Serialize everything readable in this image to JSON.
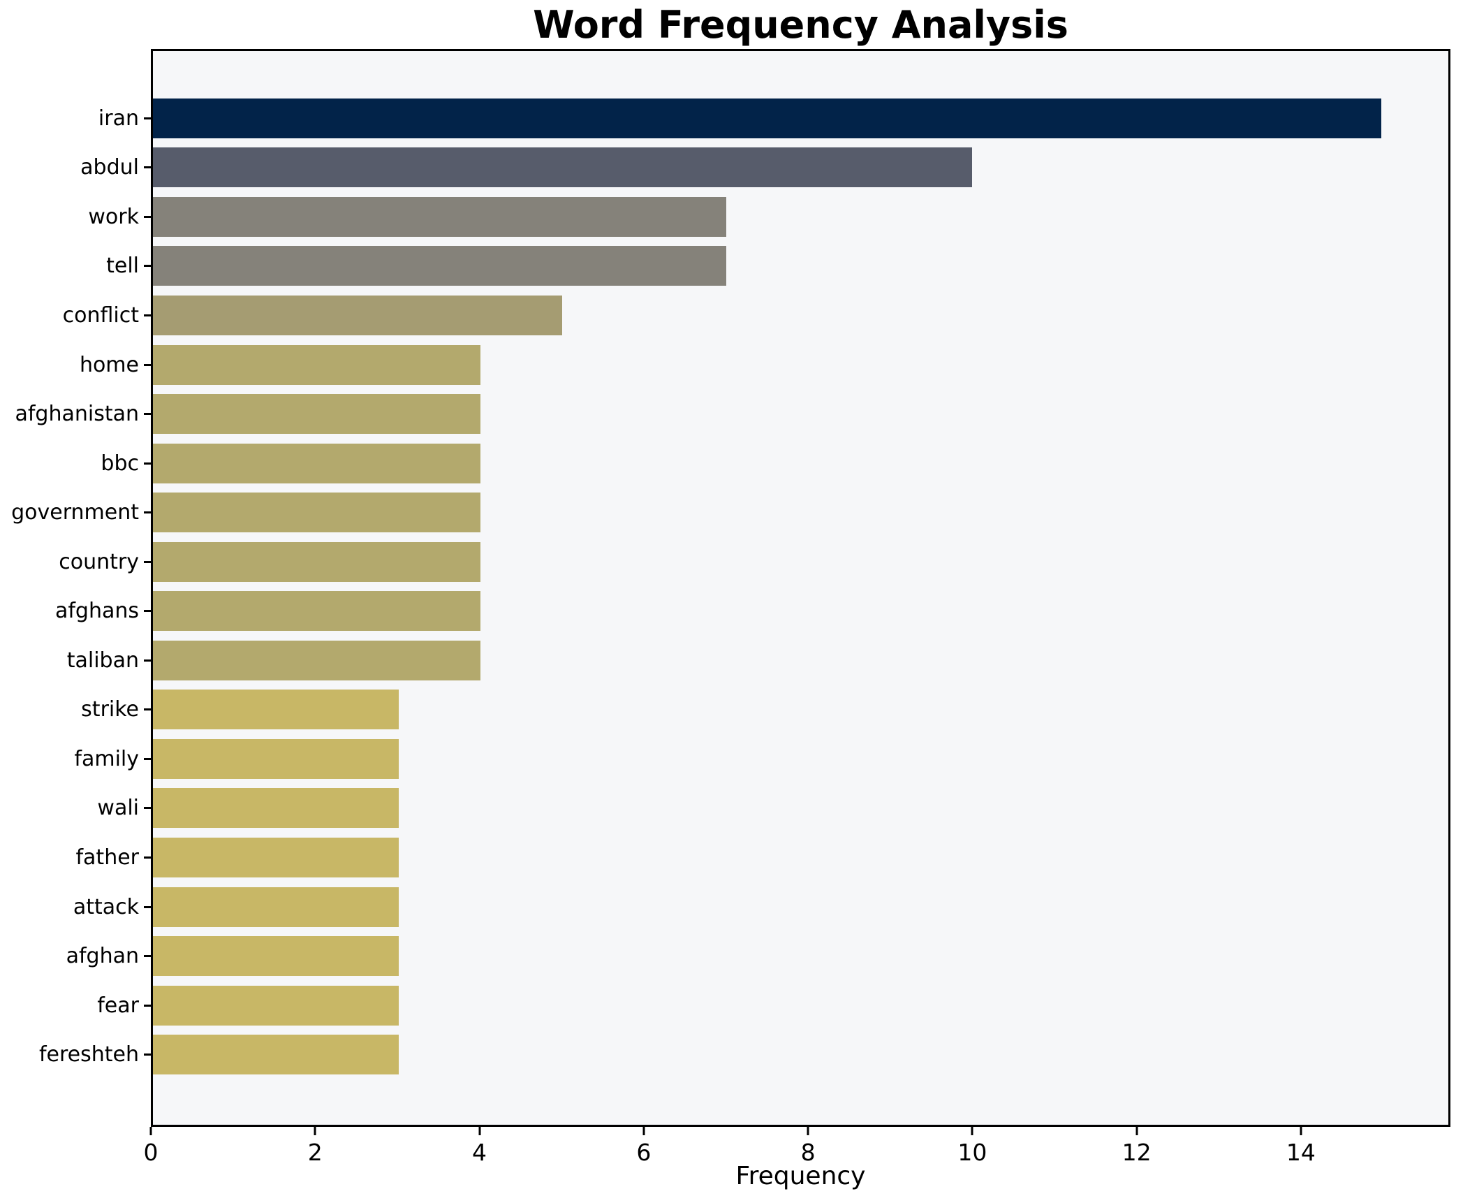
{
  "chart_data": {
    "type": "bar",
    "orientation": "horizontal",
    "title": "Word Frequency Analysis",
    "xlabel": "Frequency",
    "ylabel": "",
    "categories": [
      "iran",
      "abdul",
      "work",
      "tell",
      "conflict",
      "home",
      "afghanistan",
      "bbc",
      "government",
      "country",
      "afghans",
      "taliban",
      "strike",
      "family",
      "wali",
      "father",
      "attack",
      "afghan",
      "fear",
      "fereshteh"
    ],
    "values": [
      15,
      10,
      7,
      7,
      5,
      4,
      4,
      4,
      4,
      4,
      4,
      4,
      3,
      3,
      3,
      3,
      3,
      3,
      3,
      3
    ],
    "bar_colors": [
      "#022349",
      "#575c6b",
      "#85827a",
      "#85827a",
      "#a59c72",
      "#b3a96d",
      "#b3a96d",
      "#b3a96d",
      "#b3a96d",
      "#b3a96d",
      "#b3a96d",
      "#b3a96d",
      "#c8b766",
      "#c8b766",
      "#c8b766",
      "#c8b766",
      "#c8b766",
      "#c8b766",
      "#c8b766",
      "#c8b766"
    ],
    "xticks": [
      0,
      2,
      4,
      6,
      8,
      10,
      12,
      14
    ],
    "xlim": [
      0,
      15.82
    ],
    "grid": false,
    "legend": null,
    "plot_bg": "#f6f7f9",
    "figure_bg": "#ffffff",
    "frame_color": "#000000",
    "text_color": "#000000"
  }
}
